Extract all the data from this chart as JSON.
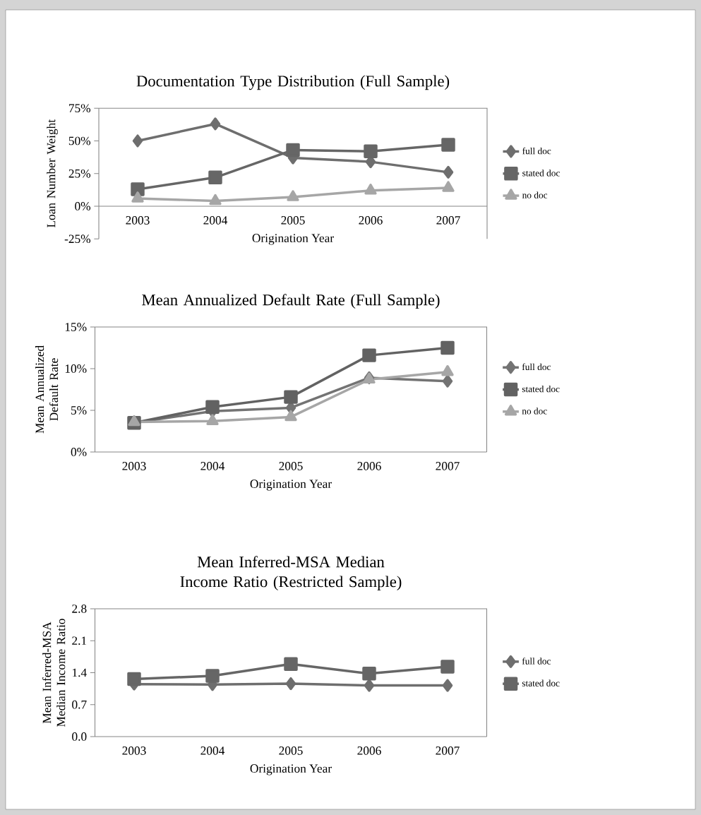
{
  "chart_data": [
    {
      "type": "line",
      "title": "Documentation Type Distribution (Full Sample)",
      "xlabel": "Origination Year",
      "ylabel": "Loan Number Weight",
      "categories": [
        "2003",
        "2004",
        "2005",
        "2006",
        "2007"
      ],
      "series": [
        {
          "name": "full doc",
          "color": "#6e6e6e",
          "marker": "diamond",
          "values": [
            50,
            63,
            37,
            34,
            26
          ]
        },
        {
          "name": "stated doc",
          "color": "#666666",
          "marker": "square",
          "values": [
            13,
            22,
            43,
            42,
            47
          ]
        },
        {
          "name": "no doc",
          "color": "#a6a6a6",
          "marker": "triangle",
          "values": [
            6,
            4,
            7,
            12,
            14
          ]
        }
      ],
      "ylim": [
        -25,
        75
      ],
      "yticks": [
        {
          "value": -25,
          "label": "-25%"
        },
        {
          "value": 0,
          "label": "0%"
        },
        {
          "value": 25,
          "label": "25%"
        },
        {
          "value": 50,
          "label": "50%"
        },
        {
          "value": 75,
          "label": "75%"
        }
      ],
      "legend": "right"
    },
    {
      "type": "line",
      "title": "Mean Annualized Default Rate (Full Sample)",
      "xlabel": "Origination Year",
      "ylabel": "Mean Annualized Default Rate",
      "categories": [
        "2003",
        "2004",
        "2005",
        "2006",
        "2007"
      ],
      "series": [
        {
          "name": "full doc",
          "color": "#737373",
          "marker": "diamond",
          "values": [
            3.5,
            4.9,
            5.3,
            8.9,
            8.5
          ]
        },
        {
          "name": "stated doc",
          "color": "#626262",
          "marker": "square",
          "values": [
            3.5,
            5.4,
            6.6,
            11.6,
            12.5
          ]
        },
        {
          "name": "no doc",
          "color": "#a6a6a6",
          "marker": "triangle",
          "values": [
            3.6,
            3.7,
            4.2,
            8.7,
            9.6
          ]
        }
      ],
      "ylim": [
        0,
        15
      ],
      "yticks": [
        {
          "value": 0,
          "label": "0%"
        },
        {
          "value": 5,
          "label": "5%"
        },
        {
          "value": 10,
          "label": "10%"
        },
        {
          "value": 15,
          "label": "15%"
        }
      ],
      "legend": "right"
    },
    {
      "type": "line",
      "title": "Mean Inferred-MSA Median Income Ratio (Restricted Sample)",
      "xlabel": "Origination Year",
      "ylabel": "Mean Inferred-MSA Median Income Ratio",
      "categories": [
        "2003",
        "2004",
        "2005",
        "2006",
        "2007"
      ],
      "series": [
        {
          "name": "full doc",
          "color": "#6e6e6e",
          "marker": "diamond",
          "values": [
            1.15,
            1.14,
            1.16,
            1.12,
            1.12
          ]
        },
        {
          "name": "stated doc",
          "color": "#666666",
          "marker": "square",
          "values": [
            1.26,
            1.33,
            1.59,
            1.38,
            1.53
          ]
        }
      ],
      "ylim": [
        0,
        2.8
      ],
      "yticks": [
        {
          "value": 0,
          "label": "0.0"
        },
        {
          "value": 0.7,
          "label": "0.7"
        },
        {
          "value": 1.4,
          "label": "1.4"
        },
        {
          "value": 2.1,
          "label": "2.1"
        },
        {
          "value": 2.8,
          "label": "2.8"
        }
      ],
      "legend": "right"
    }
  ]
}
